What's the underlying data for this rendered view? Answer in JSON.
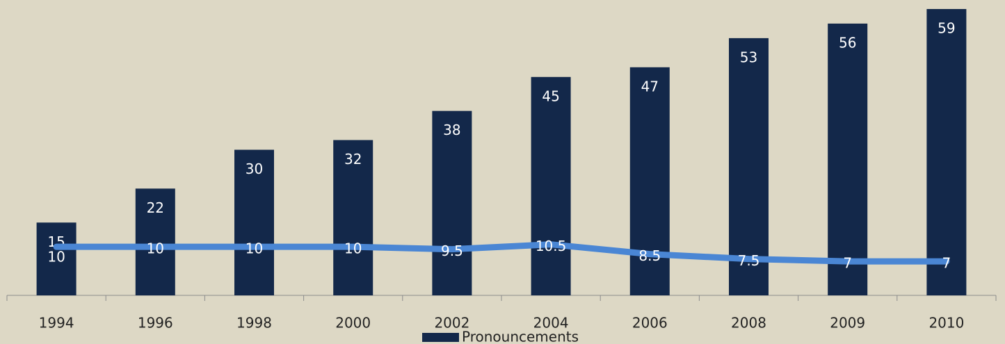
{
  "chart_data": {
    "type": "bar",
    "categories": [
      "1994",
      "1996",
      "1998",
      "2000",
      "2002",
      "2004",
      "2006",
      "2008",
      "2009",
      "2010"
    ],
    "ylim": [
      0,
      60
    ],
    "legend": "bottom",
    "series": [
      {
        "name": "Pronouncements",
        "type": "bar",
        "color": "#13284a",
        "values": [
          15,
          22,
          30,
          32,
          38,
          45,
          47,
          53,
          56,
          59
        ]
      },
      {
        "type": "line",
        "color": "#4a86d4",
        "values": [
          10,
          10,
          10,
          10,
          9.5,
          10.5,
          8.5,
          7.5,
          7,
          7
        ]
      }
    ]
  }
}
